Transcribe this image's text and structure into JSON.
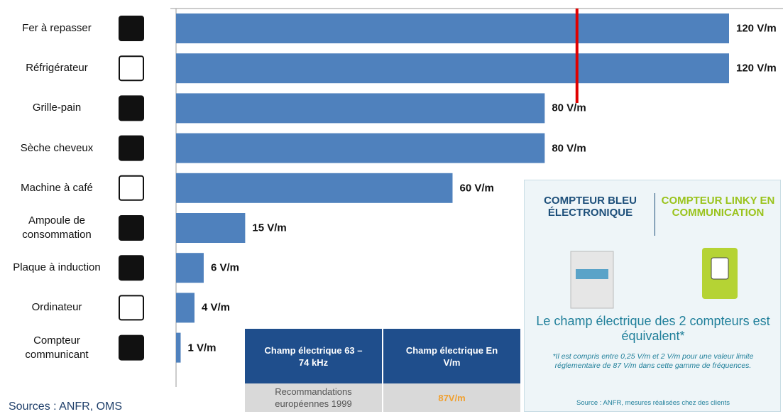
{
  "chart_data": {
    "type": "bar",
    "orientation": "horizontal",
    "categories": [
      "Fer à repasser",
      "Réfrigérateur",
      "Grille-pain",
      "Sèche cheveux",
      "Machine à café",
      "Ampoule de consommation",
      "Plaque à induction",
      "Ordinateur",
      "Compteur communicant"
    ],
    "values": [
      120,
      120,
      80,
      80,
      60,
      15,
      6,
      4,
      1
    ],
    "value_labels": [
      "120 V/m",
      "120 V/m",
      "80 V/m",
      "80 V/m",
      "60 V/m",
      "15 V/m",
      "6 V/m",
      "4 V/m",
      "1 V/m"
    ],
    "color": "#4f81bd",
    "xlim": [
      0,
      120
    ],
    "reference_line": 87,
    "reference_color": "#e00000"
  },
  "table": {
    "headers": [
      "Champ électrique 63 – 74 kHz",
      "Champ électrique En V/m"
    ],
    "rows": [
      [
        "Recommandations européennes 1999",
        "87V/m"
      ]
    ]
  },
  "info_box": {
    "left_title": "COMPTEUR BLEU ÉLECTRONIQUE",
    "right_title": "COMPTEUR LINKY EN COMMUNICATION",
    "headline": "Le champ électrique des 2 compteurs est équivalent*",
    "footnote": "*Il est compris entre 0,25 V/m et 2 V/m pour une valeur limite réglementaire de 87 V/m dans cette gamme de fréquences.",
    "source": "Source : ANFR, mesures réalisées chez des clients"
  },
  "sources": "Sources : ANFR, OMS"
}
